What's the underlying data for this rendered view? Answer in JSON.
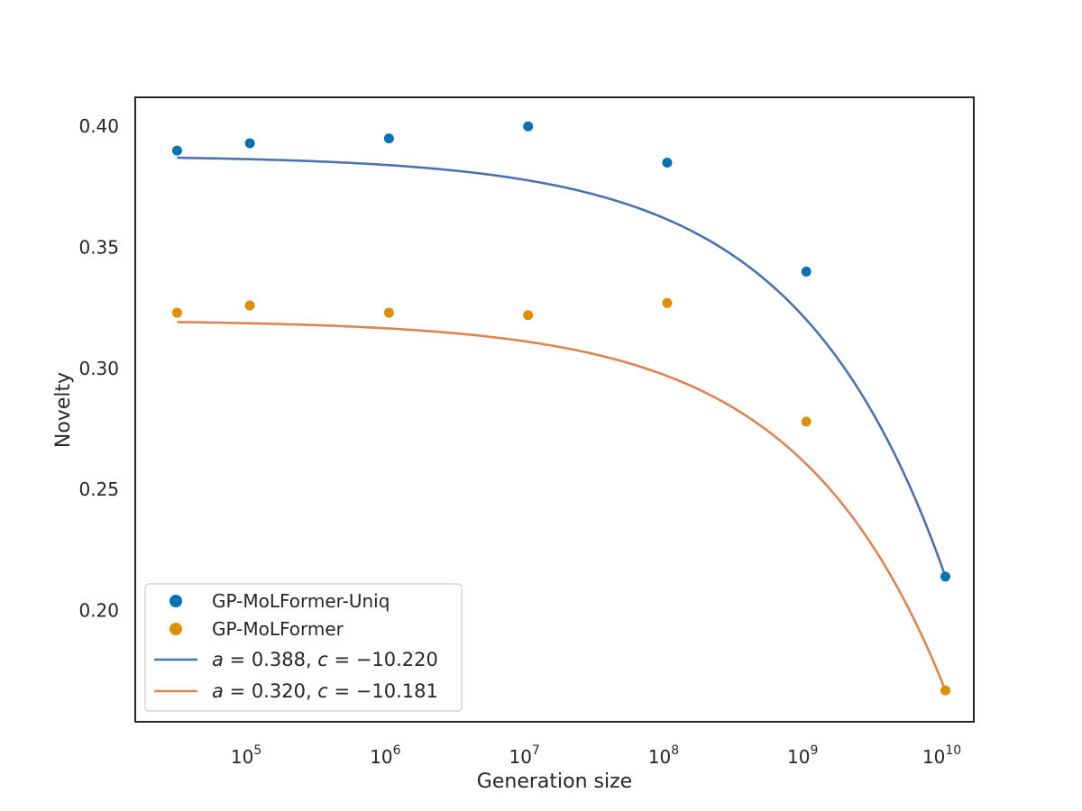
{
  "chart_data": {
    "type": "scatter",
    "xlabel": "Generation size",
    "ylabel": "Novelty",
    "xscale": "log",
    "xlim": [
      15000,
      16000000000
    ],
    "ylim": [
      0.154,
      0.412
    ],
    "x_ticks": [
      {
        "value": 100000,
        "base": "10",
        "exp": "5"
      },
      {
        "value": 1000000,
        "base": "10",
        "exp": "6"
      },
      {
        "value": 10000000,
        "base": "10",
        "exp": "7"
      },
      {
        "value": 100000000,
        "base": "10",
        "exp": "8"
      },
      {
        "value": 1000000000,
        "base": "10",
        "exp": "9"
      },
      {
        "value": 10000000000,
        "base": "10",
        "exp": "10"
      }
    ],
    "y_ticks": [
      {
        "value": 0.2,
        "label": "0.20"
      },
      {
        "value": 0.25,
        "label": "0.25"
      },
      {
        "value": 0.3,
        "label": "0.30"
      },
      {
        "value": 0.35,
        "label": "0.35"
      },
      {
        "value": 0.4,
        "label": "0.40"
      }
    ],
    "grid": false,
    "legend_position": "lower-left",
    "series": [
      {
        "name": "GP-MoLFormer-Uniq",
        "kind": "scatter",
        "color": "#0173b2",
        "x": [
          30000,
          100000,
          1000000,
          10000000,
          100000000,
          1000000000,
          10000000000
        ],
        "y": [
          0.39,
          0.393,
          0.395,
          0.4,
          0.385,
          0.34,
          0.214
        ]
      },
      {
        "name": "GP-MoLFormer",
        "kind": "scatter",
        "color": "#de8f05",
        "x": [
          30000,
          100000,
          1000000,
          10000000,
          100000000,
          1000000000,
          10000000000
        ],
        "y": [
          0.323,
          0.326,
          0.323,
          0.322,
          0.327,
          0.278,
          0.167
        ]
      },
      {
        "name": "a = 0.388, c = −10.220",
        "kind": "fit-line",
        "color": "#4c72b0",
        "a": 0.388,
        "c": -10.22,
        "x_start": 30000,
        "x_end": 10000000000
      },
      {
        "name": "a = 0.320, c = −10.181",
        "kind": "fit-line",
        "color": "#dd8452",
        "a": 0.32,
        "c": -10.181,
        "x_start": 30000,
        "x_end": 10000000000
      }
    ],
    "legend": [
      {
        "label": "GP-MoLFormer-Uniq",
        "kind": "marker",
        "color": "#0173b2"
      },
      {
        "label": "GP-MoLFormer",
        "kind": "marker",
        "color": "#de8f05"
      },
      {
        "a_value": "0.388",
        "c_value": "−10.220",
        "kind": "line",
        "color": "#4c72b0"
      },
      {
        "a_value": "0.320",
        "c_value": "−10.181",
        "kind": "line",
        "color": "#dd8452"
      }
    ]
  }
}
